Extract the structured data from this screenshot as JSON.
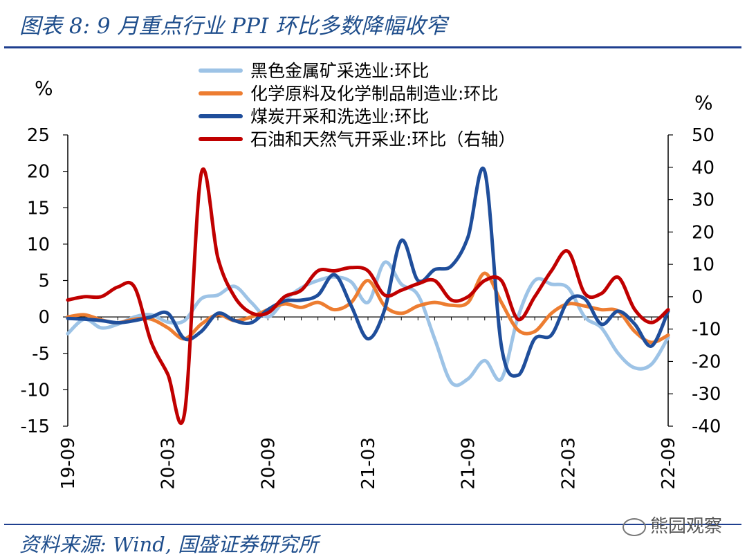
{
  "title": "图表 8:  9 月重点行业 PPI 环比多数降幅收窄",
  "source": "资料来源:  Wind,  国盛证券研究所",
  "watermark": "熊园观察",
  "chart_data": {
    "type": "line",
    "y_left_unit": "%",
    "y_right_unit": "%",
    "ylim_left": [
      -15,
      25
    ],
    "ylim_right": [
      -40,
      50
    ],
    "y_ticks_left": [
      25,
      20,
      15,
      10,
      5,
      0,
      -5,
      -10,
      -15
    ],
    "y_ticks_right": [
      50,
      40,
      30,
      20,
      10,
      0,
      -10,
      -20,
      -30,
      -40
    ],
    "x_tick_labels": [
      "19-09",
      "20-03",
      "20-09",
      "21-03",
      "21-09",
      "22-03",
      "22-09"
    ],
    "x": [
      "19-09",
      "19-10",
      "19-11",
      "19-12",
      "20-01",
      "20-02",
      "20-03",
      "20-04",
      "20-05",
      "20-06",
      "20-07",
      "20-08",
      "20-09",
      "20-10",
      "20-11",
      "20-12",
      "21-01",
      "21-02",
      "21-03",
      "21-04",
      "21-05",
      "21-06",
      "21-07",
      "21-08",
      "21-09",
      "21-10",
      "21-11",
      "21-12",
      "22-01",
      "22-02",
      "22-03",
      "22-04",
      "22-05",
      "22-06",
      "22-07",
      "22-08",
      "22-09"
    ],
    "legend_position": "top",
    "series": [
      {
        "name": "黑色金属矿采选业:环比",
        "color": "#9dc3e6",
        "axis": "left",
        "values": [
          -2.3,
          -0.3,
          -1.5,
          -1.0,
          0.0,
          0.3,
          -0.7,
          -0.5,
          2.5,
          3.0,
          4.2,
          2.0,
          0.0,
          2.3,
          4.0,
          5.0,
          5.5,
          4.8,
          2.0,
          7.5,
          4.5,
          3.0,
          -3.0,
          -9.0,
          -8.5,
          -6.0,
          -8.5,
          0.0,
          5.0,
          4.5,
          4.0,
          0.0,
          -1.5,
          -5.0,
          -7.0,
          -6.5,
          -2.8
        ]
      },
      {
        "name": "化学原料及化学制品制造业:环比",
        "color": "#ed7d31",
        "axis": "left",
        "values": [
          0.0,
          0.3,
          -0.4,
          -0.8,
          -0.3,
          -0.3,
          -1.5,
          -3.0,
          -1.0,
          0.3,
          -0.5,
          0.0,
          1.0,
          1.8,
          1.3,
          2.0,
          1.0,
          2.0,
          5.0,
          1.5,
          0.5,
          1.5,
          2.0,
          1.6,
          2.0,
          6.0,
          2.0,
          -1.8,
          -2.0,
          0.5,
          1.8,
          1.5,
          1.0,
          0.8,
          -2.0,
          -3.5,
          -2.5
        ]
      },
      {
        "name": "煤炭开采和洗选业:环比",
        "color": "#1f4e9b",
        "axis": "left",
        "values": [
          -0.2,
          -0.3,
          -0.5,
          -0.8,
          -0.5,
          0.0,
          0.5,
          -3.0,
          -2.0,
          0.5,
          -0.5,
          -0.8,
          1.0,
          2.2,
          2.3,
          3.0,
          5.8,
          1.5,
          -3.0,
          1.0,
          10.5,
          5.0,
          6.5,
          7.0,
          11.0,
          20.0,
          -4.0,
          -8.0,
          -3.0,
          -2.5,
          2.2,
          2.5,
          -1.0,
          0.8,
          -1.0,
          -4.0,
          0.8
        ]
      },
      {
        "name": "石油和天然气开采业:环比（右轴）",
        "color": "#c00000",
        "axis": "right",
        "values": [
          -1.0,
          0.0,
          0.0,
          3.0,
          3.0,
          -14.0,
          -24.0,
          -36.0,
          38.0,
          12.0,
          0.0,
          -5.0,
          -5.0,
          0.0,
          2.0,
          8.0,
          8.0,
          9.0,
          8.0,
          0.5,
          2.0,
          4.0,
          5.0,
          -1.0,
          0.0,
          5.0,
          5.0,
          -7.0,
          0.0,
          8.0,
          14.0,
          1.0,
          1.0,
          6.0,
          -4.0,
          -8.0,
          -4.0
        ]
      }
    ]
  }
}
